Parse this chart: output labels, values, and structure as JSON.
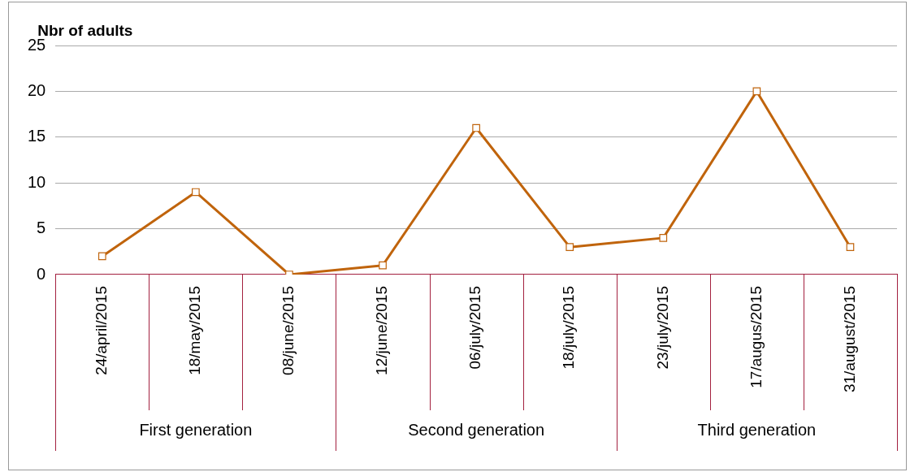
{
  "chart_data": {
    "type": "line",
    "ylabel": "Nbr of adults",
    "categories": [
      "24/april/2015",
      "18/may/2015",
      "08/june/2015",
      "12/june/2015",
      "06/july/2015",
      "18/july/2015",
      "23/july/2015",
      "17/augus/2015",
      "31/august/2015"
    ],
    "series": [
      {
        "color": "#c0640c",
        "values": [
          2,
          9,
          0,
          1,
          16,
          3,
          4,
          20,
          3
        ]
      }
    ],
    "ylim": [
      0,
      25
    ],
    "yticks": [
      0,
      5,
      10,
      15,
      20,
      25
    ],
    "grid": "y",
    "marker": "square",
    "line_style": "solid",
    "legend": false,
    "annotations": [
      "First generation",
      "Second generation",
      "Third generation"
    ]
  }
}
